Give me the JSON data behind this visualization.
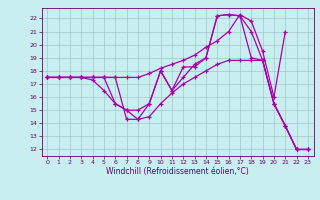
{
  "background_color": "#c8eef0",
  "line_color": "#aa00aa",
  "xlabel": "Windchill (Refroidissement éolien,°C)",
  "xlim": [
    -0.5,
    23.5
  ],
  "ylim": [
    11.5,
    22.8
  ],
  "xticks": [
    0,
    1,
    2,
    3,
    4,
    5,
    6,
    7,
    8,
    9,
    10,
    11,
    12,
    13,
    14,
    15,
    16,
    17,
    18,
    19,
    20,
    21,
    22,
    23
  ],
  "yticks": [
    12,
    13,
    14,
    15,
    16,
    17,
    18,
    19,
    20,
    21,
    22
  ],
  "lines": [
    {
      "x": [
        0,
        1,
        2,
        3,
        4,
        5,
        6,
        7,
        8,
        9,
        10,
        11,
        12,
        13,
        14,
        15,
        16,
        17,
        18,
        19,
        20,
        21,
        22,
        23
      ],
      "y": [
        17.5,
        17.5,
        17.5,
        17.5,
        17.5,
        17.5,
        15.5,
        15.0,
        15.0,
        15.5,
        18.0,
        16.5,
        18.3,
        18.3,
        19.0,
        22.2,
        22.3,
        22.2,
        19.0,
        18.8,
        15.5,
        13.8,
        12.0,
        12.0
      ]
    },
    {
      "x": [
        0,
        1,
        2,
        3,
        4,
        5,
        6,
        7,
        8,
        9,
        10,
        11,
        12,
        13,
        14,
        15,
        16,
        17,
        18,
        19,
        20,
        21,
        22,
        23
      ],
      "y": [
        17.5,
        17.5,
        17.5,
        17.5,
        17.5,
        17.5,
        17.5,
        14.3,
        14.3,
        15.5,
        18.0,
        16.5,
        17.5,
        18.5,
        19.0,
        22.2,
        22.3,
        22.2,
        21.0,
        18.8,
        15.5,
        13.8,
        12.0,
        12.0
      ]
    },
    {
      "x": [
        0,
        1,
        2,
        3,
        4,
        5,
        6,
        7,
        8,
        9,
        10,
        11,
        12,
        13,
        14,
        15,
        16,
        17,
        18,
        19,
        20,
        21
      ],
      "y": [
        17.5,
        17.5,
        17.5,
        17.5,
        17.5,
        17.5,
        17.5,
        17.5,
        17.5,
        17.8,
        18.2,
        18.5,
        18.8,
        19.2,
        19.8,
        20.3,
        21.0,
        22.3,
        21.8,
        19.5,
        16.0,
        21.0
      ]
    },
    {
      "x": [
        0,
        1,
        2,
        3,
        4,
        5,
        6,
        7,
        8,
        9,
        10,
        11,
        12,
        13,
        14,
        15,
        16,
        17,
        18,
        19,
        20,
        21,
        22,
        23
      ],
      "y": [
        17.5,
        17.5,
        17.5,
        17.5,
        17.3,
        16.5,
        15.5,
        15.0,
        14.3,
        14.5,
        15.5,
        16.3,
        17.0,
        17.5,
        18.0,
        18.5,
        18.8,
        18.8,
        18.8,
        18.8,
        15.5,
        13.8,
        12.0,
        12.0
      ]
    }
  ]
}
